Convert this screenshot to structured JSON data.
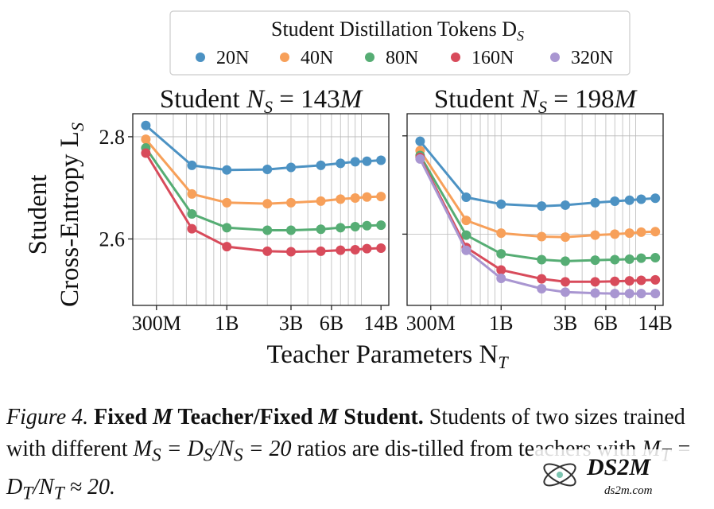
{
  "legend": {
    "title": "Student Distillation Tokens D",
    "title_sub": "S",
    "entries": [
      {
        "label": "20N",
        "color": "#4c92c3"
      },
      {
        "label": "40N",
        "color": "#f7a05a"
      },
      {
        "label": "80N",
        "color": "#56ad74"
      },
      {
        "label": "160N",
        "color": "#d84b5b"
      },
      {
        "label": "320N",
        "color": "#a996d1"
      }
    ]
  },
  "y_axis_label_line1": "Student",
  "y_axis_label_line2": "Cross-Entropy L",
  "y_axis_label_sub": "S",
  "x_axis_label": "Teacher Parameters N",
  "x_axis_label_sub": "T",
  "chart_data": [
    {
      "type": "line",
      "title": "Student N_S = 143M",
      "title_prefix": "Student ",
      "title_var": "N",
      "title_sub": "S",
      "title_rhs": " = 143",
      "title_unit": "M",
      "x_scale": "log",
      "xlim": [
        200000000,
        16000000000
      ],
      "ylim": [
        2.47,
        2.845
      ],
      "yticks": [
        {
          "value": 2.8,
          "label": "2.8"
        },
        {
          "value": 2.6,
          "label": "2.6"
        }
      ],
      "xticks": [
        {
          "value": 300000000,
          "label": "300M"
        },
        {
          "value": 1000000000,
          "label": "1B"
        },
        {
          "value": 3000000000,
          "label": "3B"
        },
        {
          "value": 6000000000,
          "label": "6B"
        },
        {
          "value": 14000000000,
          "label": "14B"
        }
      ],
      "x": [
        250000000,
        550000000,
        1000000000,
        2000000000,
        3000000000,
        5000000000,
        7000000000,
        9000000000,
        11000000000,
        14000000000
      ],
      "series": [
        {
          "name": "20N",
          "values": [
            2.822,
            2.744,
            2.735,
            2.736,
            2.74,
            2.744,
            2.748,
            2.751,
            2.752,
            2.754
          ]
        },
        {
          "name": "40N",
          "values": [
            2.795,
            2.688,
            2.671,
            2.669,
            2.671,
            2.674,
            2.678,
            2.68,
            2.682,
            2.683
          ]
        },
        {
          "name": "80N",
          "values": [
            2.778,
            2.649,
            2.622,
            2.617,
            2.617,
            2.619,
            2.622,
            2.624,
            2.626,
            2.627
          ]
        },
        {
          "name": "160N",
          "values": [
            2.768,
            2.62,
            2.585,
            2.576,
            2.575,
            2.576,
            2.578,
            2.579,
            2.581,
            2.582
          ]
        }
      ]
    },
    {
      "type": "line",
      "title": "Student N_S = 198M",
      "title_prefix": "Student ",
      "title_var": "N",
      "title_sub": "S",
      "title_rhs": " = 198",
      "title_unit": "M",
      "x_scale": "log",
      "xlim": [
        200000000,
        16000000000
      ],
      "ylim": [
        2.455,
        2.845
      ],
      "yticks": [
        {
          "value": 2.8,
          "label": "2.8"
        },
        {
          "value": 2.6,
          "label": "2.6"
        }
      ],
      "xticks": [
        {
          "value": 300000000,
          "label": "300M"
        },
        {
          "value": 1000000000,
          "label": "1B"
        },
        {
          "value": 3000000000,
          "label": "3B"
        },
        {
          "value": 6000000000,
          "label": "6B"
        },
        {
          "value": 14000000000,
          "label": "14B"
        }
      ],
      "x": [
        250000000,
        550000000,
        1000000000,
        2000000000,
        3000000000,
        5000000000,
        7000000000,
        9000000000,
        11000000000,
        14000000000
      ],
      "series": [
        {
          "name": "20N",
          "values": [
            2.789,
            2.675,
            2.661,
            2.657,
            2.659,
            2.664,
            2.667,
            2.669,
            2.671,
            2.673
          ]
        },
        {
          "name": "40N",
          "values": [
            2.77,
            2.628,
            2.602,
            2.595,
            2.594,
            2.598,
            2.6,
            2.602,
            2.604,
            2.605
          ]
        },
        {
          "name": "80N",
          "values": [
            2.76,
            2.598,
            2.56,
            2.548,
            2.545,
            2.547,
            2.548,
            2.549,
            2.551,
            2.552
          ]
        },
        {
          "name": "160N",
          "values": [
            2.756,
            2.573,
            2.527,
            2.509,
            2.503,
            2.503,
            2.504,
            2.505,
            2.506,
            2.507
          ]
        },
        {
          "name": "320N",
          "values": [
            2.753,
            2.567,
            2.51,
            2.489,
            2.482,
            2.48,
            2.479,
            2.479,
            2.479,
            2.479
          ]
        }
      ]
    }
  ],
  "caption": {
    "fig_label": "Figure 4.",
    "bold_1": "Fixed ",
    "bold_var_1": "M",
    "bold_2": " Teacher/Fixed ",
    "bold_var_2": "M",
    "bold_3": " Student.",
    "text_1": " Students of two sizes trained with different ",
    "math_1": "M",
    "math_1_sub": "S",
    "math_2": " = D",
    "math_2_sub": "S",
    "math_3": "/N",
    "math_3_sub": "S",
    "math_4": " = 20",
    "text_2": " ratios are dis-tilled from teachers with ",
    "math_5": "M",
    "math_5_sub": "T",
    "math_6": " = D",
    "math_6_sub": "T",
    "math_7": "/N",
    "math_7_sub": "T",
    "math_8": " ≈ 20."
  },
  "watermark": {
    "brand": "DS2M",
    "url": "ds2m.com"
  }
}
